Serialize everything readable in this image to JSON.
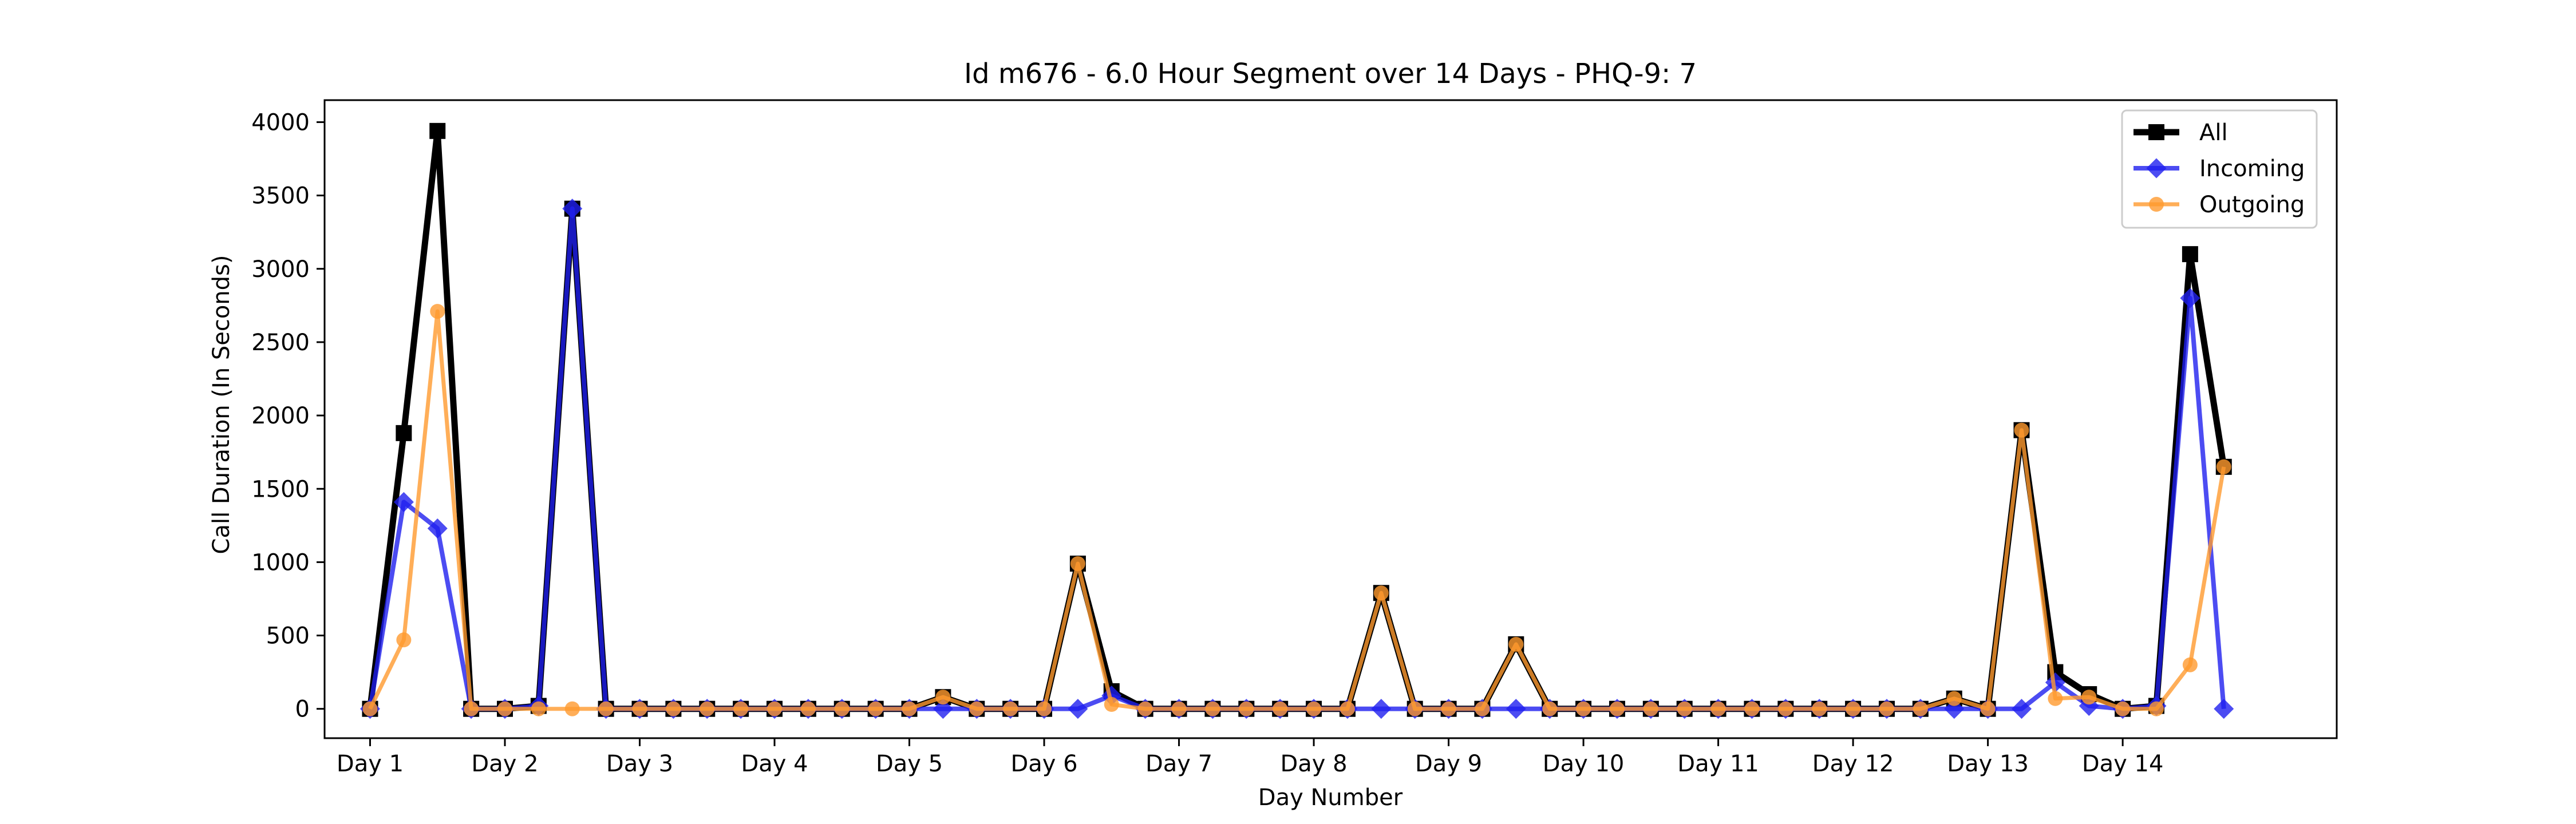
{
  "chart_data": {
    "type": "line",
    "title": "Id m676 - 6.0 Hour Segment over 14 Days - PHQ-9: 7",
    "xlabel": "Day Number",
    "ylabel": "Call Duration (In Seconds)",
    "ylim": [
      -200,
      4150
    ],
    "xlim": [
      -1.35,
      58.35
    ],
    "grid": false,
    "legend_position": "top-right",
    "x_tick_positions": [
      0,
      4,
      8,
      12,
      16,
      20,
      24,
      28,
      32,
      36,
      40,
      44,
      48,
      52
    ],
    "x_tick_labels": [
      "Day 1",
      "Day 2",
      "Day 3",
      "Day 4",
      "Day 5",
      "Day 6",
      "Day 7",
      "Day 8",
      "Day 9",
      "Day 10",
      "Day 11",
      "Day 12",
      "Day 13",
      "Day 14"
    ],
    "y_ticks": [
      0,
      500,
      1000,
      1500,
      2000,
      2500,
      3000,
      3500,
      4000
    ],
    "x": [
      0,
      1,
      2,
      3,
      4,
      5,
      6,
      7,
      8,
      9,
      10,
      11,
      12,
      13,
      14,
      15,
      16,
      17,
      18,
      19,
      20,
      21,
      22,
      23,
      24,
      25,
      26,
      27,
      28,
      29,
      30,
      31,
      32,
      33,
      34,
      35,
      36,
      37,
      38,
      39,
      40,
      41,
      42,
      43,
      44,
      45,
      46,
      47,
      48,
      49,
      50,
      51,
      52,
      53,
      54,
      55
    ],
    "series": [
      {
        "name": "All",
        "color": "#000000",
        "marker": "square",
        "values": [
          0,
          1880,
          3940,
          0,
          0,
          20,
          3410,
          0,
          0,
          0,
          0,
          0,
          0,
          0,
          0,
          0,
          0,
          80,
          0,
          0,
          0,
          990,
          120,
          0,
          0,
          0,
          0,
          0,
          0,
          0,
          790,
          0,
          0,
          0,
          440,
          0,
          0,
          0,
          0,
          0,
          0,
          0,
          0,
          0,
          0,
          0,
          0,
          70,
          0,
          1900,
          250,
          100,
          0,
          20,
          3100,
          1650
        ]
      },
      {
        "name": "Incoming",
        "color": "#1f1fef",
        "marker": "diamond",
        "values": [
          0,
          1410,
          1230,
          0,
          0,
          20,
          3410,
          0,
          0,
          0,
          0,
          0,
          0,
          0,
          0,
          0,
          0,
          0,
          0,
          0,
          0,
          0,
          90,
          0,
          0,
          0,
          0,
          0,
          0,
          0,
          0,
          0,
          0,
          0,
          0,
          0,
          0,
          0,
          0,
          0,
          0,
          0,
          0,
          0,
          0,
          0,
          0,
          0,
          0,
          0,
          180,
          20,
          0,
          20,
          2800,
          0
        ]
      },
      {
        "name": "Outgoing",
        "color": "#ff9a2e",
        "marker": "circle",
        "values": [
          0,
          470,
          2710,
          0,
          0,
          0,
          0,
          0,
          0,
          0,
          0,
          0,
          0,
          0,
          0,
          0,
          0,
          80,
          0,
          0,
          0,
          990,
          30,
          0,
          0,
          0,
          0,
          0,
          0,
          0,
          790,
          0,
          0,
          0,
          440,
          0,
          0,
          0,
          0,
          0,
          0,
          0,
          0,
          0,
          0,
          0,
          0,
          70,
          0,
          1900,
          70,
          80,
          0,
          0,
          300,
          1650
        ]
      }
    ]
  }
}
